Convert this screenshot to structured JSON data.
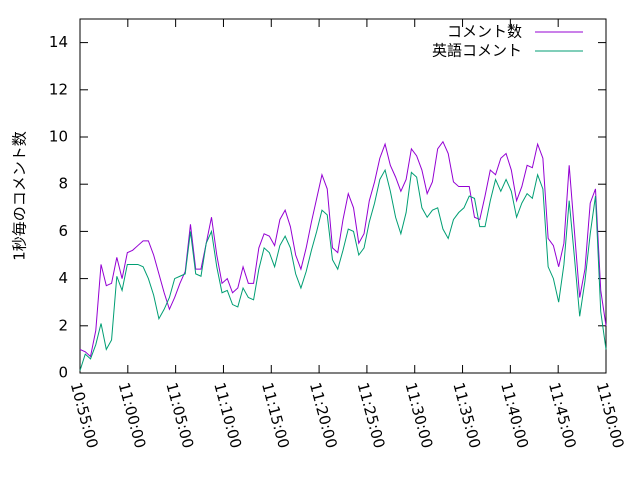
{
  "chart_data": {
    "type": "line",
    "y_label": "1秒毎のコメント数",
    "x": [
      "10:55:00",
      "10:55:33",
      "10:56:06",
      "10:56:39",
      "10:57:12",
      "10:57:45",
      "10:58:18",
      "10:58:51",
      "10:59:24",
      "10:59:57",
      "11:00:30",
      "11:01:03",
      "11:01:36",
      "11:02:09",
      "11:02:42",
      "11:03:15",
      "11:03:48",
      "11:04:21",
      "11:04:54",
      "11:05:27",
      "11:06:00",
      "11:06:33",
      "11:07:06",
      "11:07:39",
      "11:08:12",
      "11:08:45",
      "11:09:18",
      "11:09:51",
      "11:10:24",
      "11:10:57",
      "11:11:30",
      "11:12:03",
      "11:12:36",
      "11:13:09",
      "11:13:42",
      "11:14:15",
      "11:14:48",
      "11:15:21",
      "11:15:54",
      "11:16:27",
      "11:17:00",
      "11:17:33",
      "11:18:06",
      "11:18:39",
      "11:19:12",
      "11:19:45",
      "11:20:18",
      "11:20:51",
      "11:21:24",
      "11:21:57",
      "11:22:30",
      "11:23:03",
      "11:23:36",
      "11:24:09",
      "11:24:42",
      "11:25:15",
      "11:25:48",
      "11:26:21",
      "11:26:54",
      "11:27:27",
      "11:28:00",
      "11:28:33",
      "11:29:06",
      "11:29:39",
      "11:30:12",
      "11:30:45",
      "11:31:18",
      "11:31:51",
      "11:32:24",
      "11:32:57",
      "11:33:30",
      "11:34:03",
      "11:34:36",
      "11:35:09",
      "11:35:42",
      "11:36:15",
      "11:36:48",
      "11:37:21",
      "11:37:54",
      "11:38:27",
      "11:39:00",
      "11:39:33",
      "11:40:06",
      "11:40:39",
      "11:41:12",
      "11:41:45",
      "11:42:18",
      "11:42:51",
      "11:43:24",
      "11:43:57",
      "11:44:30",
      "11:45:03",
      "11:45:36",
      "11:46:09",
      "11:46:42",
      "11:47:15",
      "11:47:48",
      "11:48:21",
      "11:48:54",
      "11:49:27",
      "11:50:00"
    ],
    "series": [
      {
        "name": "コメント数",
        "color": "#9400d3",
        "values": [
          1.0,
          0.9,
          0.7,
          1.8,
          4.6,
          3.7,
          3.8,
          4.9,
          4.0,
          5.1,
          5.2,
          5.4,
          5.6,
          5.6,
          5.0,
          4.2,
          3.4,
          2.7,
          3.2,
          3.8,
          4.3,
          6.3,
          4.4,
          4.4,
          5.5,
          6.6,
          5.0,
          3.8,
          4.0,
          3.4,
          3.6,
          4.5,
          3.8,
          3.8,
          5.3,
          5.9,
          5.8,
          5.4,
          6.5,
          6.9,
          6.2,
          5.0,
          4.4,
          5.3,
          6.4,
          7.4,
          8.4,
          7.8,
          5.3,
          5.1,
          6.5,
          7.6,
          7.0,
          5.5,
          5.9,
          7.3,
          8.1,
          9.1,
          9.7,
          8.8,
          8.3,
          7.7,
          8.2,
          9.5,
          9.2,
          8.6,
          7.6,
          8.1,
          9.5,
          9.8,
          9.3,
          8.1,
          7.9,
          7.9,
          7.9,
          6.6,
          6.5,
          7.5,
          8.6,
          8.4,
          9.1,
          9.3,
          8.6,
          7.3,
          7.9,
          8.8,
          8.7,
          9.7,
          9.1,
          5.7,
          5.4,
          4.5,
          5.5,
          8.8,
          6.0,
          3.2,
          4.4,
          7.2,
          7.8,
          3.5,
          2.0
        ]
      },
      {
        "name": "英語コメント",
        "color": "#009e73",
        "values": [
          0.1,
          0.8,
          0.6,
          1.2,
          2.1,
          1.0,
          1.4,
          4.1,
          3.5,
          4.6,
          4.6,
          4.6,
          4.5,
          4.0,
          3.3,
          2.3,
          2.7,
          3.2,
          4.0,
          4.1,
          4.2,
          6.0,
          4.2,
          4.1,
          5.5,
          6.0,
          4.5,
          3.4,
          3.5,
          2.9,
          2.8,
          3.6,
          3.2,
          3.1,
          4.4,
          5.3,
          5.1,
          4.5,
          5.4,
          5.8,
          5.3,
          4.2,
          3.6,
          4.3,
          5.2,
          6.0,
          6.9,
          6.7,
          4.8,
          4.4,
          5.2,
          6.1,
          6.0,
          5.0,
          5.3,
          6.4,
          7.2,
          8.2,
          8.6,
          7.7,
          6.6,
          5.9,
          6.8,
          8.5,
          8.3,
          7.0,
          6.6,
          6.9,
          7.0,
          6.1,
          5.7,
          6.5,
          6.8,
          7.0,
          7.5,
          7.4,
          6.2,
          6.2,
          7.3,
          8.2,
          7.7,
          8.2,
          7.7,
          6.6,
          7.2,
          7.6,
          7.4,
          8.4,
          7.8,
          4.5,
          4.0,
          3.0,
          4.6,
          7.3,
          4.9,
          2.4,
          3.9,
          5.9,
          7.5,
          2.6,
          1.0
        ]
      }
    ],
    "xlim": [
      "10:55:00",
      "11:50:00"
    ],
    "xticks": [
      "10:55:00",
      "11:00:00",
      "11:05:00",
      "11:10:00",
      "11:15:00",
      "11:20:00",
      "11:25:00",
      "11:30:00",
      "11:35:00",
      "11:40:00",
      "11:45:00",
      "11:50:00"
    ],
    "ylim": [
      0,
      15
    ],
    "yticks": [
      0,
      2,
      4,
      6,
      8,
      10,
      12,
      14
    ],
    "legend": "top-right",
    "grid": false
  }
}
